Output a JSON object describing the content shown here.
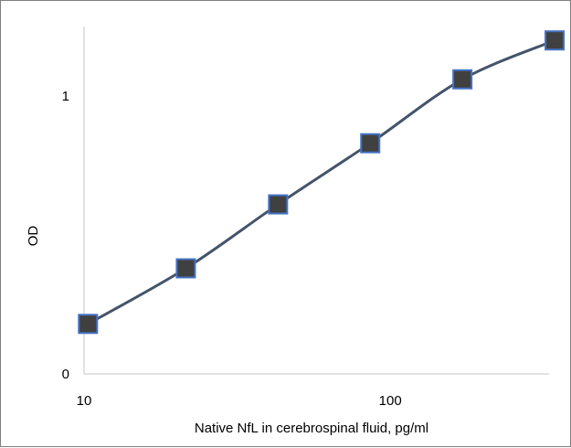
{
  "chart_data": {
    "type": "line",
    "x_scale": "log",
    "xlabel": "Native NfL in cerebrospinal fluid, pg/ml",
    "ylabel": "OD",
    "xlim": [
      10,
      330
    ],
    "ylim": [
      0,
      1.25
    ],
    "x_tick_values": [
      10,
      100
    ],
    "x_tick_labels": [
      "10",
      "100"
    ],
    "y_tick_values": [
      0,
      1
    ],
    "y_tick_labels": [
      "0",
      "1"
    ],
    "grid": false,
    "legend": "none",
    "series": [
      {
        "x": [
          10.3,
          21.5,
          43,
          86,
          172,
          344
        ],
        "y": [
          0.18,
          0.38,
          0.61,
          0.83,
          1.06,
          1.2
        ],
        "marker": "square",
        "line_color": "#44546a",
        "marker_fill": "#404040",
        "marker_edge": "#4472c4",
        "smooth": true
      }
    ]
  }
}
